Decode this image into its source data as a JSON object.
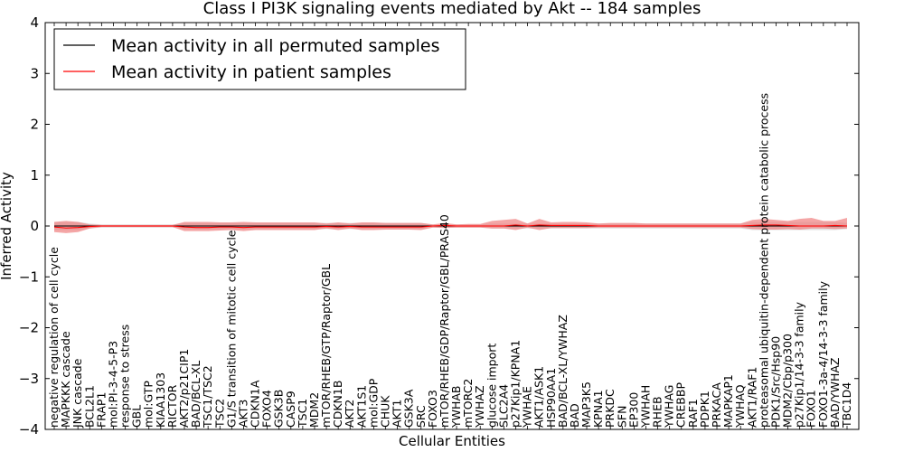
{
  "chart_data": {
    "type": "line",
    "title": "Class I PI3K signaling events mediated by Akt -- 184 samples",
    "xlabel": "Cellular Entities",
    "ylabel": "Inferred Activity",
    "ylim": [
      -4,
      4
    ],
    "yticks": [
      -4,
      -3,
      -2,
      -1,
      0,
      1,
      2,
      3,
      4
    ],
    "legend_position": "top-left",
    "categories": [
      "negative regulation of cell cycle",
      "MAPKKK cascade",
      "JNK cascade",
      "BCL2L1",
      "FRAP1",
      "mol:PI-3-4-5-P3",
      "response to stress",
      "GBL",
      "mol:GTP",
      "KIAA1303",
      "RICTOR",
      "AKT2/p21CIP1",
      "BAD/BCL-XL",
      "TSC1/TSC2",
      "TSC2",
      "G1/S transition of mitotic cell cycle",
      "AKT3",
      "CDKN1A",
      "FOXO4",
      "GSK3B",
      "CASP9",
      "TSC1",
      "MDM2",
      "mTOR/RHEB/GTP/Raptor/GBL",
      "CDKN1B",
      "AKT2",
      "AKT1S1",
      "mol:GDP",
      "CHUK",
      "AKT1",
      "GSK3A",
      "SRC",
      "FOXO3",
      "mTOR/RHEB/GDP/Raptor/GBL/PRAS40",
      "YWHAB",
      "mTORC2",
      "YWHAZ",
      "glucose import",
      "SLC2A4",
      "p27Kip1/KPNA1",
      "YWHAE",
      "AKT1/ASK1",
      "HSP90AA1",
      "BAD/BCL-XL/YWHAZ",
      "BAD",
      "MAP3K5",
      "KPNA1",
      "PRKDC",
      "SFN",
      "EP300",
      "YWHAH",
      "RHEB",
      "YWHAG",
      "CREBBP",
      "RAF1",
      "PDPK1",
      "PRKACA",
      "MAPKAP1",
      "YWHAQ",
      "AKT1/RAF1",
      "proteasomal ubiquitin-dependent protein catabolic process",
      "PDK1/Src/Hsp90",
      "MDM2/Cbp/p300",
      "p27Kip1/14-3-3 family",
      "FOXO1",
      "FOXO1-3a-4/14-3-3 family",
      "BAD/YWHAZ",
      "TBC1D4"
    ],
    "series": [
      {
        "name": "Mean activity in all permuted samples",
        "color": "#000000",
        "values": [
          0.0,
          0.0,
          0.0,
          0.0,
          0.0,
          0.0,
          0.0,
          0.0,
          0.0,
          0.0,
          0.0,
          0.0,
          0.0,
          0.0,
          0.0,
          0.0,
          0.0,
          0.0,
          0.0,
          0.0,
          0.0,
          0.0,
          0.0,
          0.0,
          0.0,
          0.0,
          0.0,
          0.0,
          0.0,
          0.0,
          0.0,
          0.0,
          0.0,
          0.0,
          0.0,
          0.0,
          0.0,
          0.0,
          0.0,
          0.0,
          0.0,
          0.0,
          0.0,
          0.0,
          0.0,
          0.0,
          0.0,
          0.0,
          0.0,
          0.0,
          0.0,
          0.0,
          0.0,
          0.0,
          0.0,
          0.0,
          0.0,
          0.0,
          0.0,
          0.0,
          0.0,
          0.0,
          0.0,
          0.0,
          0.0,
          0.0,
          0.0,
          0.0
        ],
        "band_lower": [
          -0.08,
          -0.08,
          -0.08,
          -0.05,
          -0.03,
          -0.03,
          -0.03,
          -0.03,
          -0.03,
          -0.03,
          -0.03,
          -0.06,
          -0.06,
          -0.06,
          -0.06,
          -0.06,
          -0.06,
          -0.06,
          -0.06,
          -0.06,
          -0.06,
          -0.06,
          -0.06,
          -0.06,
          -0.06,
          -0.06,
          -0.06,
          -0.06,
          -0.06,
          -0.06,
          -0.06,
          -0.06,
          -0.03,
          -0.03,
          -0.03,
          -0.03,
          -0.03,
          -0.05,
          -0.05,
          -0.05,
          -0.05,
          -0.05,
          -0.05,
          -0.05,
          -0.05,
          -0.05,
          -0.05,
          -0.05,
          -0.05,
          -0.05,
          -0.05,
          -0.05,
          -0.05,
          -0.05,
          -0.05,
          -0.05,
          -0.05,
          -0.05,
          -0.05,
          -0.08,
          -0.08,
          -0.08,
          -0.08,
          -0.08,
          -0.08,
          -0.08,
          -0.08,
          -0.06
        ],
        "band_upper": [
          0.08,
          0.08,
          0.08,
          0.05,
          0.03,
          0.03,
          0.03,
          0.03,
          0.03,
          0.03,
          0.03,
          0.06,
          0.06,
          0.06,
          0.06,
          0.06,
          0.06,
          0.06,
          0.06,
          0.06,
          0.06,
          0.06,
          0.06,
          0.06,
          0.06,
          0.06,
          0.06,
          0.06,
          0.06,
          0.06,
          0.06,
          0.06,
          0.03,
          0.03,
          0.03,
          0.03,
          0.03,
          0.05,
          0.05,
          0.05,
          0.05,
          0.05,
          0.05,
          0.05,
          0.05,
          0.05,
          0.05,
          0.05,
          0.05,
          0.05,
          0.05,
          0.05,
          0.05,
          0.05,
          0.05,
          0.05,
          0.05,
          0.05,
          0.05,
          0.08,
          0.08,
          0.08,
          0.08,
          0.08,
          0.08,
          0.08,
          0.08,
          0.06
        ]
      },
      {
        "name": "Mean activity in patient samples",
        "color": "#ff0000",
        "values": [
          -0.02,
          -0.04,
          -0.03,
          -0.01,
          0.0,
          0.0,
          0.0,
          0.0,
          0.0,
          0.0,
          0.0,
          -0.02,
          -0.03,
          -0.03,
          -0.02,
          -0.02,
          -0.03,
          -0.02,
          -0.02,
          -0.02,
          -0.02,
          -0.02,
          -0.02,
          -0.01,
          -0.02,
          -0.01,
          -0.02,
          -0.02,
          -0.02,
          -0.02,
          -0.02,
          -0.02,
          0.0,
          0.01,
          0.0,
          0.0,
          0.0,
          0.0,
          0.0,
          0.02,
          0.0,
          0.02,
          0.01,
          0.01,
          0.01,
          0.01,
          0.0,
          0.0,
          0.0,
          0.0,
          0.0,
          0.0,
          0.0,
          0.0,
          0.0,
          0.0,
          0.0,
          0.0,
          0.0,
          0.01,
          0.02,
          0.02,
          0.01,
          0.0,
          0.0,
          0.0,
          0.01,
          0.0
        ],
        "band_lower": [
          -0.12,
          -0.14,
          -0.12,
          -0.05,
          -0.02,
          -0.02,
          -0.02,
          -0.02,
          -0.02,
          -0.02,
          -0.02,
          -0.1,
          -0.1,
          -0.1,
          -0.09,
          -0.08,
          -0.1,
          -0.08,
          -0.08,
          -0.08,
          -0.08,
          -0.08,
          -0.08,
          -0.05,
          -0.08,
          -0.05,
          -0.08,
          -0.08,
          -0.07,
          -0.07,
          -0.07,
          -0.08,
          -0.03,
          -0.04,
          -0.03,
          -0.03,
          -0.03,
          -0.05,
          -0.05,
          -0.08,
          -0.03,
          -0.08,
          -0.04,
          -0.04,
          -0.04,
          -0.04,
          -0.03,
          -0.03,
          -0.03,
          -0.03,
          -0.03,
          -0.03,
          -0.03,
          -0.03,
          -0.03,
          -0.03,
          -0.03,
          -0.03,
          -0.03,
          -0.06,
          -0.07,
          -0.07,
          -0.06,
          -0.07,
          -0.05,
          -0.05,
          -0.06,
          -0.05
        ],
        "band_upper": [
          0.08,
          0.1,
          0.08,
          0.03,
          0.02,
          0.02,
          0.02,
          0.02,
          0.02,
          0.02,
          0.02,
          0.08,
          0.08,
          0.08,
          0.07,
          0.07,
          0.08,
          0.07,
          0.07,
          0.07,
          0.07,
          0.07,
          0.07,
          0.05,
          0.07,
          0.05,
          0.07,
          0.07,
          0.06,
          0.06,
          0.06,
          0.06,
          0.03,
          0.06,
          0.03,
          0.04,
          0.04,
          0.1,
          0.12,
          0.14,
          0.05,
          0.14,
          0.07,
          0.08,
          0.08,
          0.07,
          0.05,
          0.06,
          0.06,
          0.06,
          0.05,
          0.05,
          0.05,
          0.05,
          0.05,
          0.05,
          0.05,
          0.05,
          0.05,
          0.12,
          0.14,
          0.12,
          0.1,
          0.14,
          0.16,
          0.1,
          0.1,
          0.16
        ]
      }
    ]
  }
}
